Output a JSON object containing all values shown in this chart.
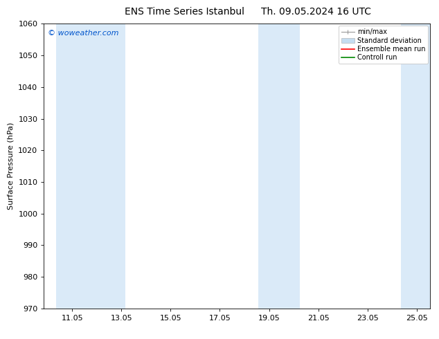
{
  "title_left": "ENS Time Series Istanbul",
  "title_right": "Th. 09.05.2024 16 UTC",
  "ylabel": "Surface Pressure (hPa)",
  "ylim": [
    970,
    1060
  ],
  "yticks": [
    970,
    980,
    990,
    1000,
    1010,
    1020,
    1030,
    1040,
    1050,
    1060
  ],
  "xtick_positions": [
    11.05,
    13.05,
    15.05,
    17.05,
    19.05,
    21.05,
    23.05,
    25.05
  ],
  "xtick_labels": [
    "11.05",
    "13.05",
    "15.05",
    "17.05",
    "19.05",
    "21.05",
    "23.05",
    "25.05"
  ],
  "xlim": [
    9.9,
    25.6
  ],
  "watermark": "© woweather.com",
  "watermark_color": "#0055cc",
  "bg_color": "#ffffff",
  "shaded_bands": [
    {
      "x_start": 10.4,
      "x_end": 13.2,
      "color": "#daeaf8"
    },
    {
      "x_start": 18.6,
      "x_end": 20.3,
      "color": "#daeaf8"
    },
    {
      "x_start": 24.4,
      "x_end": 25.6,
      "color": "#daeaf8"
    }
  ],
  "legend_entries": [
    {
      "label": "min/max",
      "color": "#aaaaaa",
      "type": "errorbar"
    },
    {
      "label": "Standard deviation",
      "color": "#c5ddf0",
      "type": "fill"
    },
    {
      "label": "Ensemble mean run",
      "color": "#ff0000",
      "type": "line"
    },
    {
      "label": "Controll run",
      "color": "#008800",
      "type": "line"
    }
  ],
  "title_fontsize": 10,
  "label_fontsize": 8,
  "tick_fontsize": 8,
  "legend_fontsize": 7,
  "watermark_fontsize": 8
}
